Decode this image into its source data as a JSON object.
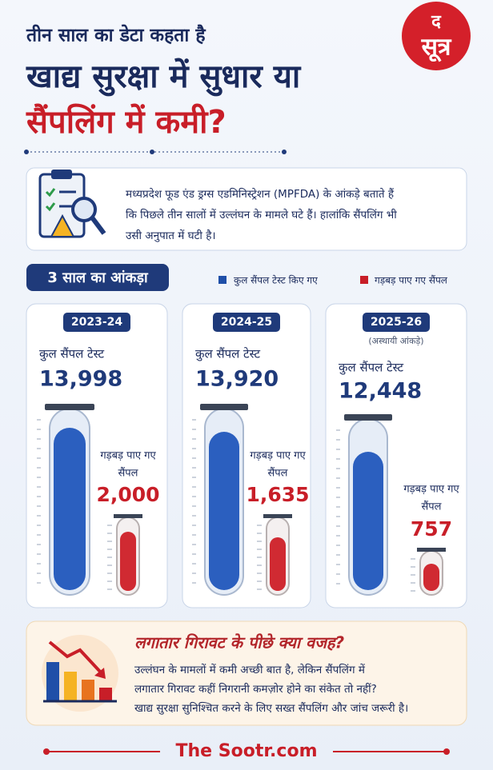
{
  "header": {
    "kicker": "तीन साल का डेटा कहता है",
    "title_line1": "खाद्य सुरक्षा में सुधार या",
    "title_line2": "सैंपलिंग में कमी?",
    "logo_top": "द",
    "logo_main": "सूत्र"
  },
  "intro": {
    "lines": [
      "मध्यप्रदेश फूड एंड ड्रग्स एडमिनिस्ट्रेशन (MPFDA) के आंकड़े बताते हैं",
      "कि पिछले तीन सालों में उल्लंघन के मामले घटे हैं। हालांकि सैंपलिंग भी",
      "उसी अनुपात में घटी है।"
    ]
  },
  "section": {
    "title": "3 साल का आंकड़ा",
    "legend": [
      "कुल सैंपल टेस्ट किए गए",
      "गड़बड़ पाए गए सैंपल"
    ]
  },
  "panels": [
    {
      "year": "2023-24",
      "total_label": "कुल सैंपल टेस्ट",
      "total": "13,998",
      "bad_label": [
        "गड़बड़ पाए गए",
        "सैंपल"
      ],
      "bad": "2,000"
    },
    {
      "year": "2024-25",
      "total_label": "कुल सैंपल टेस्ट",
      "total": "13,920",
      "bad_label": [
        "गड़बड़ पाए गए",
        "सैंपल"
      ],
      "bad": "1,635"
    },
    {
      "year": "2025-26",
      "note": "(अस्थायी आंकड़े)",
      "total_label": "कुल सैंपल टेस्ट",
      "total": "12,448",
      "bad_label": [
        "गड़बड़ पाए गए",
        "सैंपल"
      ],
      "bad": "757"
    }
  ],
  "reason": {
    "title": "लगातार गिरावट के पीछे क्या वजह?",
    "lines": [
      "उल्लंघन के मामलों में कमी अच्छी बात है, लेकिन सैंपलिंग में",
      "लगातार गिरावट कहीं निगरानी कमज़ोर होने का संकेत तो नहीं?",
      "खाद्य सुरक्षा सुनिश्चित करने के लिए सख्त सैंपलिंग और जांच जरूरी है।"
    ]
  },
  "footer": "The Sootr.com"
}
